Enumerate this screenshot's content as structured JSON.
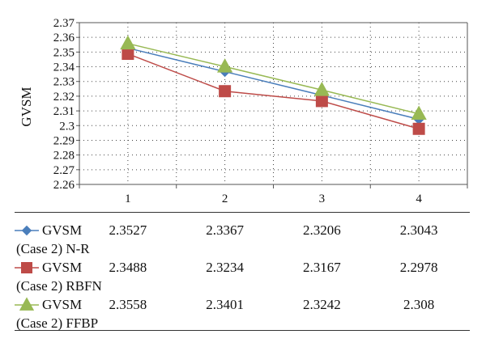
{
  "chart_data": {
    "type": "line",
    "categories": [
      "1",
      "2",
      "3",
      "4"
    ],
    "ylabel": "GVSM",
    "xlabel": "",
    "ylim": [
      2.26,
      2.37
    ],
    "ytick_step": 0.01,
    "yticks": [
      "2.26",
      "2.27",
      "2.28",
      "2.29",
      "2.3",
      "2.31",
      "2.32",
      "2.33",
      "2.34",
      "2.35",
      "2.36",
      "2.37"
    ],
    "grid": "dotted",
    "series": [
      {
        "name_line1": "GVSM",
        "name_line2": "(Case 2) N-R",
        "color": "#4a7ebb",
        "marker": "diamond",
        "values": [
          2.3527,
          2.3367,
          2.3206,
          2.3043
        ],
        "labels": [
          "2.3527",
          "2.3367",
          "2.3206",
          "2.3043"
        ]
      },
      {
        "name_line1": "GVSM",
        "name_line2": "(Case 2) RBFN",
        "color": "#be4b48",
        "marker": "square",
        "values": [
          2.3488,
          2.3234,
          2.3167,
          2.2978
        ],
        "labels": [
          "2.3488",
          "2.3234",
          "2.3167",
          "2.2978"
        ]
      },
      {
        "name_line1": "GVSM",
        "name_line2": "(Case 2) FFBP",
        "color": "#98b954",
        "marker": "triangle",
        "values": [
          2.3558,
          2.3401,
          2.3242,
          2.308
        ],
        "labels": [
          "2.3558",
          "2.3401",
          "2.3242",
          "2.308"
        ]
      }
    ]
  }
}
